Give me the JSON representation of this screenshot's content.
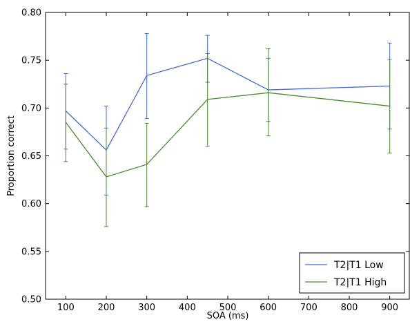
{
  "chart_data": {
    "type": "line",
    "title": "",
    "xlabel": "SOA (ms)",
    "ylabel": "Proportion correct",
    "x": [
      100,
      200,
      300,
      450,
      600,
      900
    ],
    "xlim": [
      50,
      950
    ],
    "ylim": [
      0.5,
      0.8
    ],
    "xticks": [
      100,
      200,
      300,
      400,
      500,
      600,
      700,
      800,
      900
    ],
    "yticks": [
      0.5,
      0.55,
      0.6,
      0.65,
      0.7,
      0.75,
      0.8
    ],
    "xtick_labels": [
      "100",
      "200",
      "300",
      "400",
      "500",
      "600",
      "700",
      "800",
      "900"
    ],
    "ytick_labels": [
      "0.50",
      "0.55",
      "0.60",
      "0.65",
      "0.70",
      "0.75",
      "0.80"
    ],
    "grid": false,
    "legend_position": "bottom-right",
    "series": [
      {
        "name": "T2|T1 Low",
        "color": "#4169e1",
        "values": [
          0.697,
          0.656,
          0.734,
          0.752,
          0.719,
          0.723
        ],
        "err_low": [
          0.657,
          0.609,
          0.689,
          0.727,
          0.686,
          0.678
        ],
        "err_high": [
          0.736,
          0.702,
          0.778,
          0.776,
          0.752,
          0.768
        ]
      },
      {
        "name": "T2|T1 High",
        "color": "#4a8c2a",
        "values": [
          0.685,
          0.628,
          0.641,
          0.709,
          0.716,
          0.702
        ],
        "err_low": [
          0.644,
          0.576,
          0.597,
          0.66,
          0.671,
          0.653
        ],
        "err_high": [
          0.725,
          0.679,
          0.684,
          0.757,
          0.762,
          0.751
        ]
      }
    ]
  }
}
